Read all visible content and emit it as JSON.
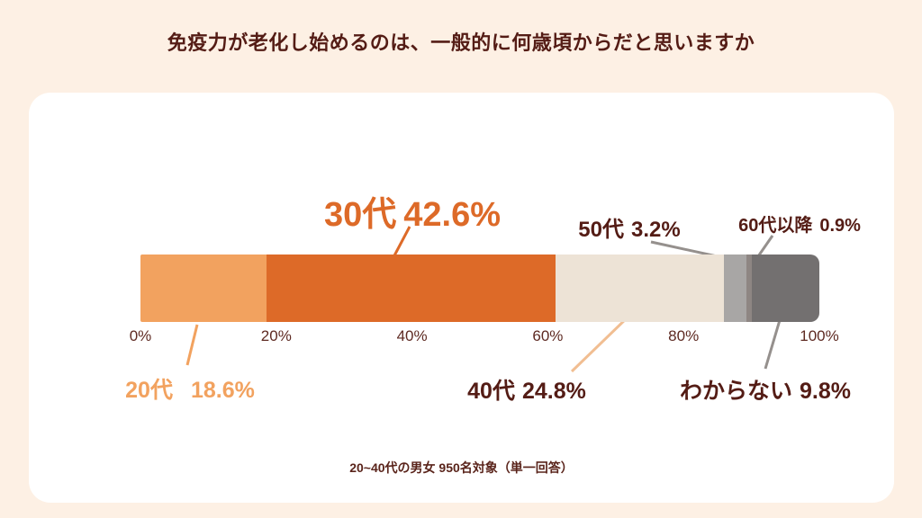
{
  "title": "免疫力が老化し始めるのは、一般的に何歳頃からだと思いますか",
  "footnote": "20~40代の男女 950名対象（単一回答）",
  "axis": {
    "ticks": [
      "0%",
      "20%",
      "40%",
      "60%",
      "80%",
      "100%"
    ]
  },
  "segments": [
    {
      "key": "20s",
      "name": "20代",
      "value": "18.6%",
      "pct": 18.6,
      "color": "#F2A25F"
    },
    {
      "key": "30s",
      "name": "30代",
      "value": "42.6%",
      "pct": 42.6,
      "color": "#DD6A28"
    },
    {
      "key": "40s",
      "name": "40代",
      "value": "24.8%",
      "pct": 24.8,
      "color": "#EDE3D6"
    },
    {
      "key": "50s",
      "name": "50代",
      "value": "3.2%",
      "pct": 3.2,
      "color": "#A8A6A5"
    },
    {
      "key": "60plus",
      "name": "60代以降",
      "value": "0.9%",
      "pct": 0.9,
      "color": "#8E8683"
    },
    {
      "key": "unknown",
      "name": "わからない",
      "value": "9.8%",
      "pct": 9.8,
      "color": "#737070"
    }
  ],
  "colors": {
    "background": "#FDF0E4",
    "card": "#FFFFFF",
    "maroon_text": "#541C15",
    "orange": "#DD6A28",
    "light_orange": "#F2A25F",
    "peach_line": "#F1BE92",
    "gray_line": "#95908D"
  },
  "chart_data": {
    "type": "bar",
    "variant": "horizontal_stacked_single_bar",
    "title": "免疫力が老化し始めるのは、一般的に何歳頃からだと思いますか",
    "categories": [
      "20代",
      "30代",
      "40代",
      "50代",
      "60代以降",
      "わからない"
    ],
    "values": [
      18.6,
      42.6,
      24.8,
      3.2,
      0.9,
      9.8
    ],
    "unit": "%",
    "xlim": [
      0,
      100
    ],
    "x_ticks": [
      "0%",
      "20%",
      "40%",
      "60%",
      "80%",
      "100%"
    ],
    "colors": [
      "#F2A25F",
      "#DD6A28",
      "#EDE3D6",
      "#A8A6A5",
      "#8E8683",
      "#737070"
    ],
    "data_labels": [
      "20代 18.6%",
      "30代 42.6%",
      "40代 24.8%",
      "50代 3.2%",
      "60代以降 0.9%",
      "わからない 9.8%"
    ],
    "footnote": "20~40代の男女 950名対象（単一回答）",
    "grid": false,
    "legend": false
  }
}
